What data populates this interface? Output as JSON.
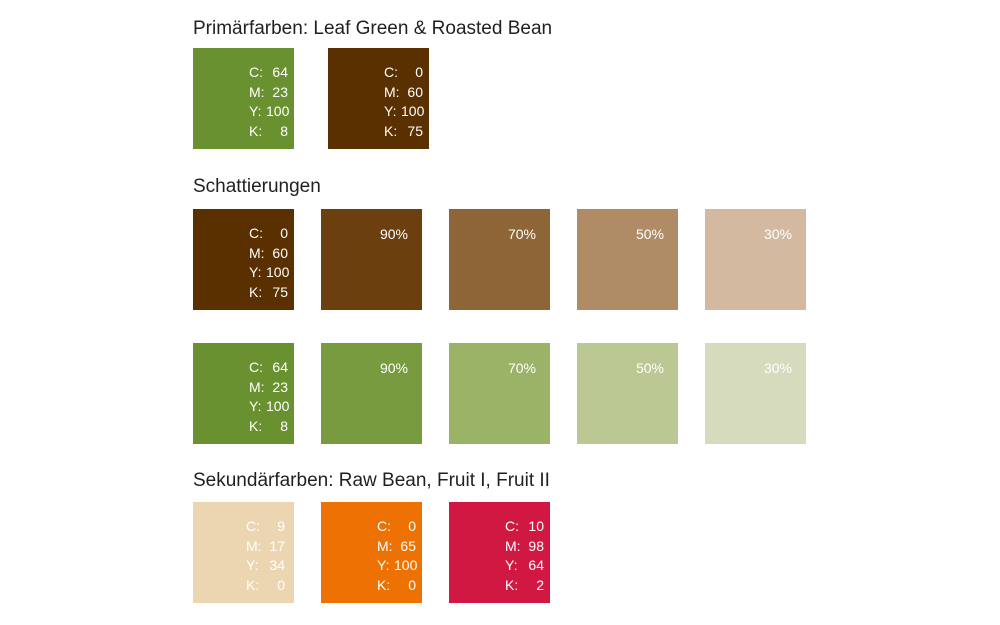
{
  "headings": {
    "primary": "Primärfarben: Leaf Green & Roasted Bean",
    "shades": "Schattierungen",
    "secondary": "Sekundärfarben: Raw Bean, Fruit I, Fruit II"
  },
  "labels": {
    "c": "C:",
    "m": "M:",
    "y": "Y:",
    "k": "K:"
  },
  "colors": {
    "leaf_green": "#6a9130",
    "roasted_bean": "#5a3000",
    "raw_bean": "#ecd6b2",
    "fruit_1": "#ed7203",
    "fruit_2": "#d11842"
  },
  "primary": [
    {
      "name": "Leaf Green",
      "color": "#6a9130",
      "c": "64",
      "m": "23",
      "y": "100",
      "k": "8"
    },
    {
      "name": "Roasted Bean",
      "color": "#5a3000",
      "c": "0",
      "m": "60",
      "y": "100",
      "k": "75"
    }
  ],
  "shades_brown": [
    {
      "color": "#5a3000",
      "c": "0",
      "m": "60",
      "y": "100",
      "k": "75"
    },
    {
      "color": "#6c400e",
      "percent": "90%"
    },
    {
      "color": "#8e6537",
      "percent": "70%"
    },
    {
      "color": "#b08c66",
      "percent": "50%"
    },
    {
      "color": "#d2b9a0",
      "percent": "30%"
    }
  ],
  "shades_green": [
    {
      "color": "#6a9130",
      "c": "64",
      "m": "23",
      "y": "100",
      "k": "8"
    },
    {
      "color": "#799b3f",
      "percent": "90%"
    },
    {
      "color": "#9bb367",
      "percent": "70%"
    },
    {
      "color": "#bbc893",
      "percent": "50%"
    },
    {
      "color": "#d7dbbd",
      "percent": "30%"
    }
  ],
  "secondary": [
    {
      "name": "Raw Bean",
      "color": "#ecd6b2",
      "c": "9",
      "m": "17",
      "y": "34",
      "k": "0"
    },
    {
      "name": "Fruit I",
      "color": "#ed7203",
      "c": "0",
      "m": "65",
      "y": "100",
      "k": "0"
    },
    {
      "name": "Fruit II",
      "color": "#d11842",
      "c": "10",
      "m": "98",
      "y": "64",
      "k": "2"
    }
  ]
}
